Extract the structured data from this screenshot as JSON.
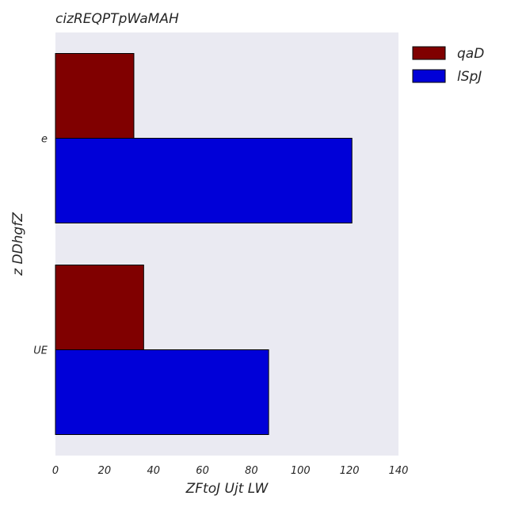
{
  "chart_data": {
    "type": "bar",
    "orientation": "horizontal",
    "title": "cizREQPTpWaMAH",
    "xlabel": "ZFtoJ  Ujt LW",
    "ylabel": "z DDhgfZ",
    "categories": [
      "e",
      "UE"
    ],
    "series": [
      {
        "name": "qaD",
        "color": "#800000",
        "values": [
          32,
          36
        ]
      },
      {
        "name": "lSpJ",
        "color": "#0000d8",
        "values": [
          121,
          87
        ]
      }
    ],
    "xlim": [
      0,
      140
    ],
    "xticks": [
      0,
      20,
      40,
      60,
      80,
      100,
      120,
      140
    ],
    "grid": false,
    "legend": "outside-top-right",
    "plot_background": "#eaeaf2"
  }
}
